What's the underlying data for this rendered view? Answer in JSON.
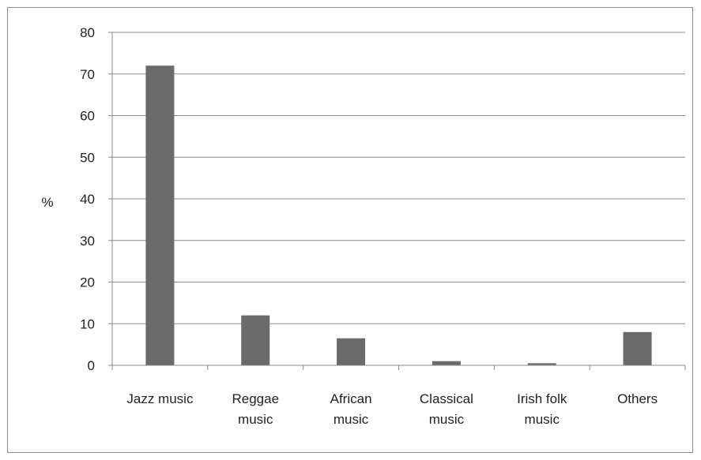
{
  "chart_data": {
    "type": "bar",
    "title": "",
    "xlabel": "",
    "ylabel": "%",
    "ylim": [
      0,
      80
    ],
    "yticks": [
      "0",
      "10",
      "20",
      "30",
      "40",
      "50",
      "60",
      "70",
      "80"
    ],
    "categories": [
      [
        "Jazz music"
      ],
      [
        "Reggae",
        "music"
      ],
      [
        "African",
        "music"
      ],
      [
        "Classical",
        "music"
      ],
      [
        "Irish folk",
        "music"
      ],
      [
        "Others"
      ]
    ],
    "values": [
      72,
      12,
      6.5,
      1,
      0.5,
      8
    ],
    "grid": true,
    "legend": "none",
    "bar_color": "#6b6b6b",
    "grid_color": "#8a8a8a"
  }
}
